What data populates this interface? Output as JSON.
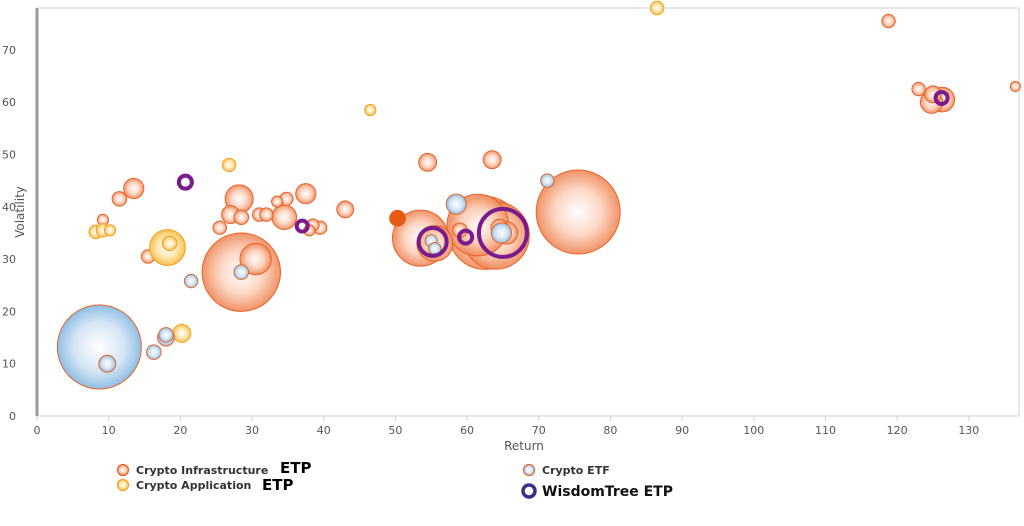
{
  "chart_data": {
    "type": "scatter",
    "subtype": "bubble",
    "xlabel": "Return",
    "ylabel": "Volatility",
    "xlim": [
      0,
      137
    ],
    "ylim": [
      0,
      78
    ],
    "x_ticks": [
      0,
      10,
      20,
      30,
      40,
      50,
      60,
      70,
      80,
      90,
      100,
      110,
      120,
      130
    ],
    "y_ticks": [
      0,
      10,
      20,
      30,
      40,
      50,
      60,
      70
    ],
    "grid": false,
    "legend": {
      "placement": "bottom",
      "items": [
        {
          "label": "Crypto Infrastructure",
          "suffix": "ETP",
          "series": "infra"
        },
        {
          "label": "Crypto Application",
          "suffix": "ETP",
          "series": "app"
        },
        {
          "label": "Crypto ETF",
          "suffix": "",
          "series": "etf"
        },
        {
          "label": "WisdomTree ETP",
          "suffix": "",
          "series": "wt"
        }
      ]
    },
    "colors": {
      "infra_stroke": "#e8632a",
      "app_stroke": "#f5a020",
      "etf_stroke": "#e8632a",
      "wt_stroke": "#7a1a8c",
      "axis": "#c8d3e0",
      "left_bar": "#999999"
    },
    "series": [
      {
        "key": "infra",
        "points": [
          {
            "x": 9.2,
            "y": 37.5,
            "size": 1.0
          },
          {
            "x": 11.5,
            "y": 41.5,
            "size": 1.3
          },
          {
            "x": 13.5,
            "y": 43.5,
            "size": 1.8
          },
          {
            "x": 15.5,
            "y": 30.5,
            "size": 1.2
          },
          {
            "x": 25.5,
            "y": 36.0,
            "size": 1.2
          },
          {
            "x": 27.0,
            "y": 38.5,
            "size": 1.6
          },
          {
            "x": 28.2,
            "y": 41.5,
            "size": 2.5
          },
          {
            "x": 28.5,
            "y": 38.0,
            "size": 1.3
          },
          {
            "x": 28.5,
            "y": 27.5,
            "size": 7.0
          },
          {
            "x": 30.5,
            "y": 30.0,
            "size": 2.8
          },
          {
            "x": 31.0,
            "y": 38.5,
            "size": 1.2
          },
          {
            "x": 32.0,
            "y": 38.5,
            "size": 1.2
          },
          {
            "x": 33.5,
            "y": 41.0,
            "size": 1.0
          },
          {
            "x": 34.5,
            "y": 38.0,
            "size": 2.2
          },
          {
            "x": 34.8,
            "y": 41.5,
            "size": 1.2
          },
          {
            "x": 37.5,
            "y": 42.5,
            "size": 1.8
          },
          {
            "x": 38.0,
            "y": 35.5,
            "size": 1.0
          },
          {
            "x": 38.5,
            "y": 36.5,
            "size": 1.1
          },
          {
            "x": 39.5,
            "y": 36.0,
            "size": 1.2
          },
          {
            "x": 43.0,
            "y": 39.5,
            "size": 1.5
          },
          {
            "x": 54.5,
            "y": 48.5,
            "size": 1.6
          },
          {
            "x": 53.5,
            "y": 34.0,
            "size": 5.0
          },
          {
            "x": 55.5,
            "y": 33.0,
            "size": 3.2
          },
          {
            "x": 59.0,
            "y": 35.5,
            "size": 1.3
          },
          {
            "x": 61.5,
            "y": 36.5,
            "size": 5.5
          },
          {
            "x": 62.5,
            "y": 35.0,
            "size": 6.5
          },
          {
            "x": 63.5,
            "y": 49.0,
            "size": 1.6
          },
          {
            "x": 64.0,
            "y": 34.5,
            "size": 6.0
          },
          {
            "x": 64.5,
            "y": 36.0,
            "size": 1.5
          },
          {
            "x": 65.5,
            "y": 35.0,
            "size": 2.0
          },
          {
            "x": 75.5,
            "y": 39.0,
            "size": 7.5
          },
          {
            "x": 118.8,
            "y": 75.5,
            "size": 1.2
          },
          {
            "x": 123.0,
            "y": 62.5,
            "size": 1.2
          },
          {
            "x": 125.0,
            "y": 61.5,
            "size": 1.5
          },
          {
            "x": 124.8,
            "y": 60.0,
            "size": 2.0
          },
          {
            "x": 126.3,
            "y": 60.5,
            "size": 2.2
          },
          {
            "x": 136.5,
            "y": 63.0,
            "size": 0.9
          }
        ]
      },
      {
        "key": "infra_solid",
        "points": [
          {
            "x": 50.3,
            "y": 37.8,
            "size": 1.4
          }
        ]
      },
      {
        "key": "app",
        "points": [
          {
            "x": 8.2,
            "y": 35.2,
            "size": 1.2
          },
          {
            "x": 9.2,
            "y": 35.5,
            "size": 1.2
          },
          {
            "x": 10.2,
            "y": 35.5,
            "size": 1.0
          },
          {
            "x": 18.2,
            "y": 32.2,
            "size": 3.2
          },
          {
            "x": 18.5,
            "y": 33.0,
            "size": 1.3
          },
          {
            "x": 20.2,
            "y": 15.8,
            "size": 1.6
          },
          {
            "x": 26.8,
            "y": 48.0,
            "size": 1.2
          },
          {
            "x": 46.5,
            "y": 58.5,
            "size": 1.0
          },
          {
            "x": 86.5,
            "y": 78.0,
            "size": 1.2
          }
        ]
      },
      {
        "key": "etf",
        "points": [
          {
            "x": 8.7,
            "y": 13.2,
            "size": 7.5
          },
          {
            "x": 9.8,
            "y": 10.0,
            "size": 1.5
          },
          {
            "x": 16.3,
            "y": 12.2,
            "size": 1.3
          },
          {
            "x": 18.0,
            "y": 15.5,
            "size": 1.3
          },
          {
            "x": 18.0,
            "y": 15.0,
            "size": 1.5
          },
          {
            "x": 21.5,
            "y": 25.8,
            "size": 1.2
          },
          {
            "x": 28.5,
            "y": 27.5,
            "size": 1.3
          },
          {
            "x": 55.0,
            "y": 33.5,
            "size": 1.1
          },
          {
            "x": 55.5,
            "y": 32.0,
            "size": 1.1
          },
          {
            "x": 58.5,
            "y": 40.5,
            "size": 1.8
          },
          {
            "x": 64.8,
            "y": 35.0,
            "size": 1.8
          },
          {
            "x": 71.2,
            "y": 45.0,
            "size": 1.2
          }
        ]
      },
      {
        "key": "wt",
        "points": [
          {
            "x": 20.7,
            "y": 44.7,
            "size": 1.3
          },
          {
            "x": 37.0,
            "y": 36.3,
            "size": 1.1
          },
          {
            "x": 55.2,
            "y": 33.3,
            "size": 2.8
          },
          {
            "x": 59.8,
            "y": 34.2,
            "size": 1.3
          },
          {
            "x": 65.0,
            "y": 35.0,
            "size": 4.8
          },
          {
            "x": 126.2,
            "y": 60.8,
            "size": 1.2
          }
        ]
      }
    ]
  }
}
